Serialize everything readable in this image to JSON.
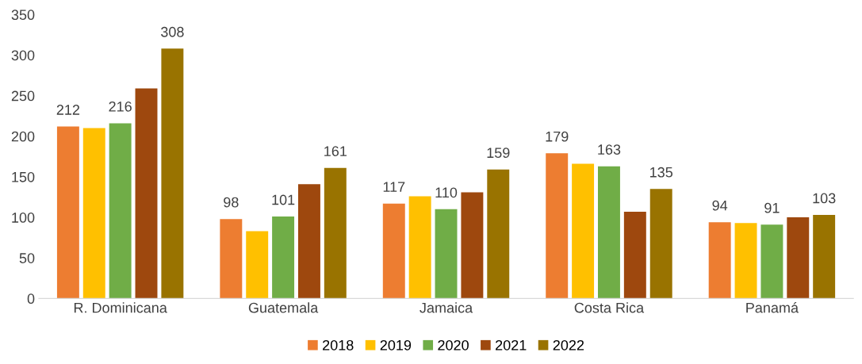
{
  "chart_data": {
    "type": "bar",
    "categories": [
      "R. Dominicana",
      "Guatemala",
      "Jamaica",
      "Costa Rica",
      "Panamá"
    ],
    "series": [
      {
        "name": "2018",
        "color": "#ed7d31",
        "values": [
          212,
          98,
          117,
          179,
          94
        ],
        "value_labels": [
          "212",
          "98",
          "117",
          "179",
          "94"
        ]
      },
      {
        "name": "2019",
        "color": "#ffc000",
        "values": [
          210,
          83,
          126,
          166,
          93
        ]
      },
      {
        "name": "2020",
        "color": "#70ad47",
        "values": [
          216,
          101,
          110,
          163,
          91
        ],
        "value_labels": [
          "216",
          "101",
          "110",
          "163",
          "91"
        ]
      },
      {
        "name": "2021",
        "color": "#9e480e",
        "values": [
          259,
          141,
          131,
          107,
          100
        ]
      },
      {
        "name": "2022",
        "color": "#997300",
        "values": [
          308,
          161,
          159,
          135,
          103
        ],
        "value_labels": [
          "308",
          "161",
          "159",
          "135",
          "103"
        ]
      }
    ],
    "ylim": [
      0,
      350
    ],
    "yticks": [
      0,
      50,
      100,
      150,
      200,
      250,
      300,
      350
    ],
    "grid": false,
    "legend": "bottom"
  }
}
